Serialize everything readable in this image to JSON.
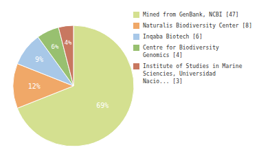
{
  "chart_data": {
    "type": "pie",
    "categories": [
      "Mined from GenBank, NCBI [47]",
      "Naturalis Biodiversity Center [8]",
      "Inqaba Biotech [6]",
      "Centre for Biodiversity\nGenomics [4]",
      "Institute of Studies in Marine\nSciencies, Universidad\nNacio... [3]"
    ],
    "values": [
      69,
      12,
      9,
      6,
      4
    ],
    "value_labels": [
      "69%",
      "12%",
      "9%",
      "6%",
      "4%"
    ],
    "colors": [
      "#d4e090",
      "#f0a868",
      "#a8c8e8",
      "#98c070",
      "#c87860"
    ],
    "data_labels": true,
    "legend": "right"
  }
}
